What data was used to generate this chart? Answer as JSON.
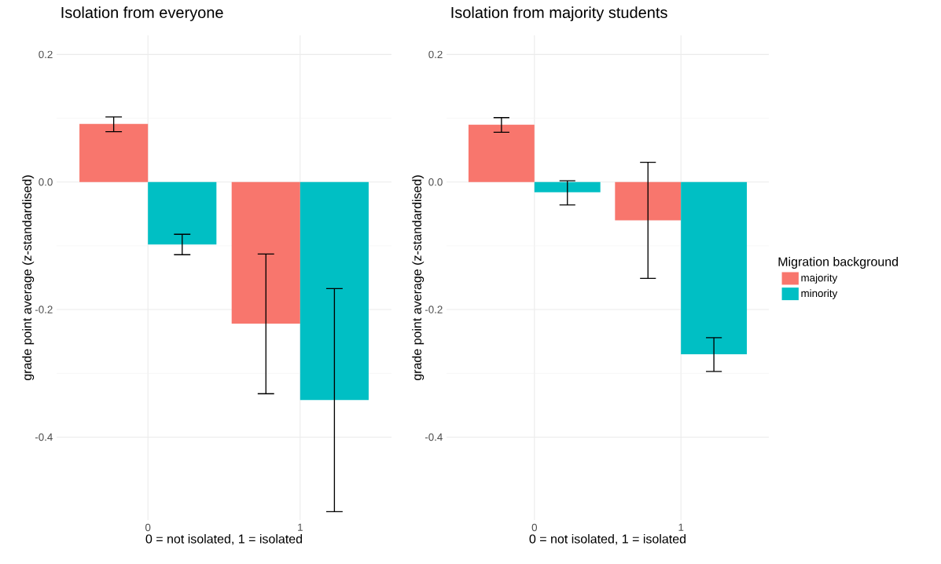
{
  "chart_data": [
    {
      "type": "bar",
      "title": "Isolation from everyone",
      "xlabel": "0 = not isolated, 1 = isolated",
      "ylabel": "grade point average (z-standardised)",
      "categories": [
        "0",
        "1"
      ],
      "series": [
        {
          "color": "#f8766d",
          "values": [
            0.091,
            -0.222
          ],
          "errors": [
            [
              0.079,
              0.102
            ],
            [
              -0.332,
              -0.113
            ]
          ]
        },
        {
          "color": "#00bfc4",
          "values": [
            -0.098,
            -0.342
          ],
          "errors": [
            [
              -0.114,
              -0.082
            ],
            [
              -0.517,
              -0.167
            ]
          ]
        }
      ],
      "ylim": [
        -0.53,
        0.23
      ],
      "yticks": [
        -0.4,
        -0.2,
        {
          "value": 0,
          "label": "0.0"
        },
        0.2
      ],
      "grid": true,
      "legend": false
    },
    {
      "type": "bar",
      "title": "Isolation from majority students",
      "xlabel": "0 = not isolated, 1 = isolated",
      "ylabel": "grade point average (z-standardised)",
      "categories": [
        "0",
        "1"
      ],
      "legend_title": "Migration background",
      "series": [
        {
          "name": "majority",
          "color": "#f8766d",
          "values": [
            0.09,
            -0.06
          ],
          "errors": [
            [
              0.078,
              0.101
            ],
            [
              -0.151,
              0.031
            ]
          ]
        },
        {
          "name": "minority",
          "color": "#00bfc4",
          "values": [
            -0.016,
            -0.27
          ],
          "errors": [
            [
              -0.036,
              0.002
            ],
            [
              -0.297,
              -0.244
            ]
          ]
        }
      ],
      "ylim": [
        -0.53,
        0.23
      ],
      "yticks": [
        -0.4,
        -0.2,
        {
          "value": 0,
          "label": "0.0"
        },
        0.2
      ],
      "grid": true,
      "legend": "right"
    }
  ]
}
